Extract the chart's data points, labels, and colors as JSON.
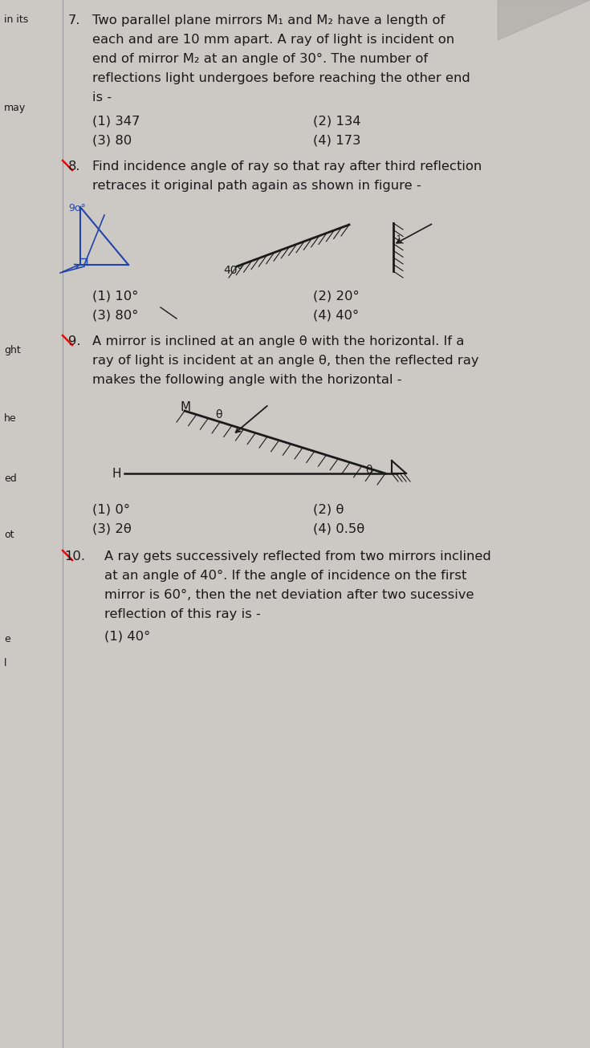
{
  "bg_color": "#ccc8c4",
  "text_color": "#1a1a1a",
  "fig_width": 7.35,
  "fig_height": 13.06,
  "q7_line1": "Two parallel plane mirrors M₁ and M₂ have a length of",
  "q7_line2": "each and are 10 mm apart. A ray of light is incident on",
  "q7_line3": "end of mirror M₂ at an angle of 30°. The number of",
  "q7_line4": "reflections light undergoes before reaching the other end",
  "q7_line5": "is -",
  "q7_opt1": "(1) 347",
  "q7_opt2": "(2) 134",
  "q7_opt3": "(3) 80",
  "q7_opt4": "(4) 173",
  "q8_line1": "Find incidence angle of ray so that ray after third reflection",
  "q8_line2": "retraces it original path again as shown in figure -",
  "q8_opt1": "(1) 10°",
  "q8_opt2": "(2) 20°",
  "q8_opt3": "(3) 80°",
  "q8_opt4": "(4) 40°",
  "q9_line1": "A mirror is inclined at an angle θ with the horizontal. If a",
  "q9_line2": "ray of light is incident at an angle θ, then the reflected ray",
  "q9_line3": "makes the following angle with the horizontal -",
  "q9_opt1": "(1) 0°",
  "q9_opt2": "(2) θ",
  "q9_opt3": "(3) 2θ",
  "q9_opt4": "(4) 0.5θ",
  "q10_line1": "A ray gets successively reflected from two mirrors inclined",
  "q10_line2": "at an angle of 40°. If the angle of incidence on the first",
  "q10_line3": "mirror is 60°, then the net deviation after two sucessive",
  "q10_line4": "reflection of this ray is -",
  "q10_opt1": "(1) 40°",
  "font_size_body": 11.8
}
